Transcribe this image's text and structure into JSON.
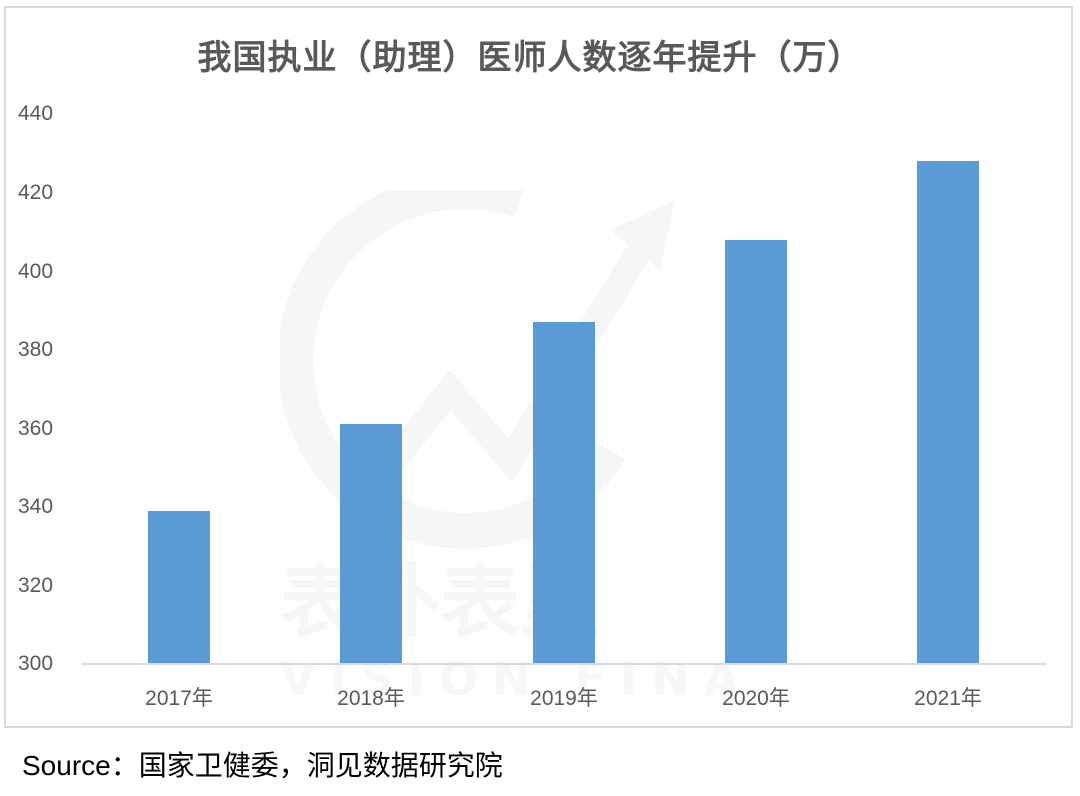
{
  "chart_data": {
    "type": "bar",
    "title": "我国执业（助理）医师人数逐年提升（万）",
    "categories": [
      "2017年",
      "2018年",
      "2019年",
      "2020年",
      "2021年"
    ],
    "values": [
      339,
      361,
      387,
      408,
      428
    ],
    "xlabel": "",
    "ylabel": "",
    "ylim": [
      300,
      440
    ],
    "yticks": [
      "440",
      "420",
      "400",
      "380",
      "360",
      "340",
      "320",
      "300"
    ],
    "grid": false,
    "legend": null,
    "bar_color": "#5b9bd5"
  },
  "source": "Source：国家卫健委，洞见数据研究院",
  "watermark": {
    "cn": "表外表里",
    "en": "VISION FINANCE"
  }
}
